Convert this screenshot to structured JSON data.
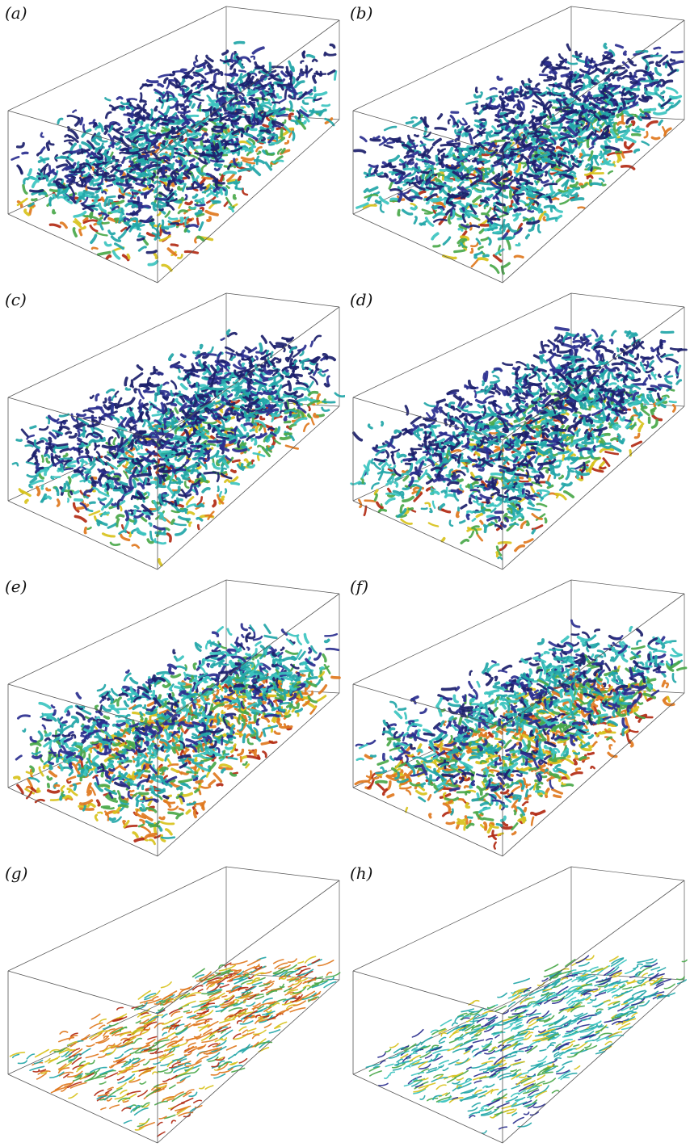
{
  "figure": {
    "panels": [
      {
        "id": "a",
        "label": "(a)",
        "colormap": "deep"
      },
      {
        "id": "b",
        "label": "(b)",
        "colormap": "deep"
      },
      {
        "id": "c",
        "label": "(c)",
        "colormap": "deep"
      },
      {
        "id": "d",
        "label": "(d)",
        "colormap": "deep"
      },
      {
        "id": "e",
        "label": "(e)",
        "colormap": "mixed"
      },
      {
        "id": "f",
        "label": "(f)",
        "colormap": "mixed"
      },
      {
        "id": "g",
        "label": "(g)",
        "colormap": "near-wall-warm"
      },
      {
        "id": "h",
        "label": "(h)",
        "colormap": "near-wall-cool"
      }
    ],
    "colors": {
      "box_edge": "#555555",
      "dark_navy": "#1c1f6b",
      "indigo": "#2b2f8f",
      "teal": "#22a6a8",
      "cyan": "#3cc4c0",
      "green": "#4aa84a",
      "yellow": "#d8c21c",
      "orange": "#e0781e",
      "red": "#b22a14"
    }
  }
}
